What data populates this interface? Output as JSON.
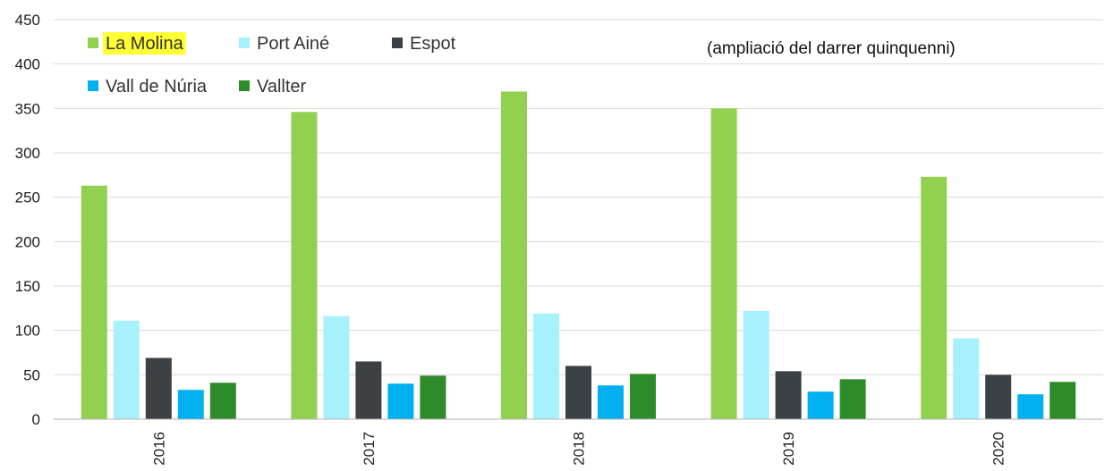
{
  "chart_data": {
    "type": "bar",
    "title": "",
    "xlabel": "",
    "ylabel": "",
    "annotation": "(ampliació del darrer quinquenni)",
    "categories": [
      "2016",
      "2017",
      "2018",
      "2019",
      "2020"
    ],
    "ylim": [
      0,
      450
    ],
    "yticks": [
      0,
      50,
      100,
      150,
      200,
      250,
      300,
      350,
      400,
      450
    ],
    "grid": true,
    "legend_position": "top-left",
    "highlighted_legend_entry": "La Molina",
    "highlight_color": "#ffff33",
    "series": [
      {
        "name": "La Molina",
        "color": "#92d050",
        "values": [
          263,
          346,
          369,
          350,
          273
        ]
      },
      {
        "name": "Port Ainé",
        "color": "#a6f1fb",
        "values": [
          111,
          116,
          119,
          122,
          91
        ]
      },
      {
        "name": "Espot",
        "color": "#3b4144",
        "values": [
          69,
          65,
          60,
          54,
          50
        ]
      },
      {
        "name": "Vall de Núria",
        "color": "#00b0f0",
        "values": [
          33,
          40,
          38,
          31,
          28
        ]
      },
      {
        "name": "Vallter",
        "color": "#2e8b2a",
        "values": [
          41,
          49,
          51,
          45,
          42
        ]
      }
    ]
  }
}
